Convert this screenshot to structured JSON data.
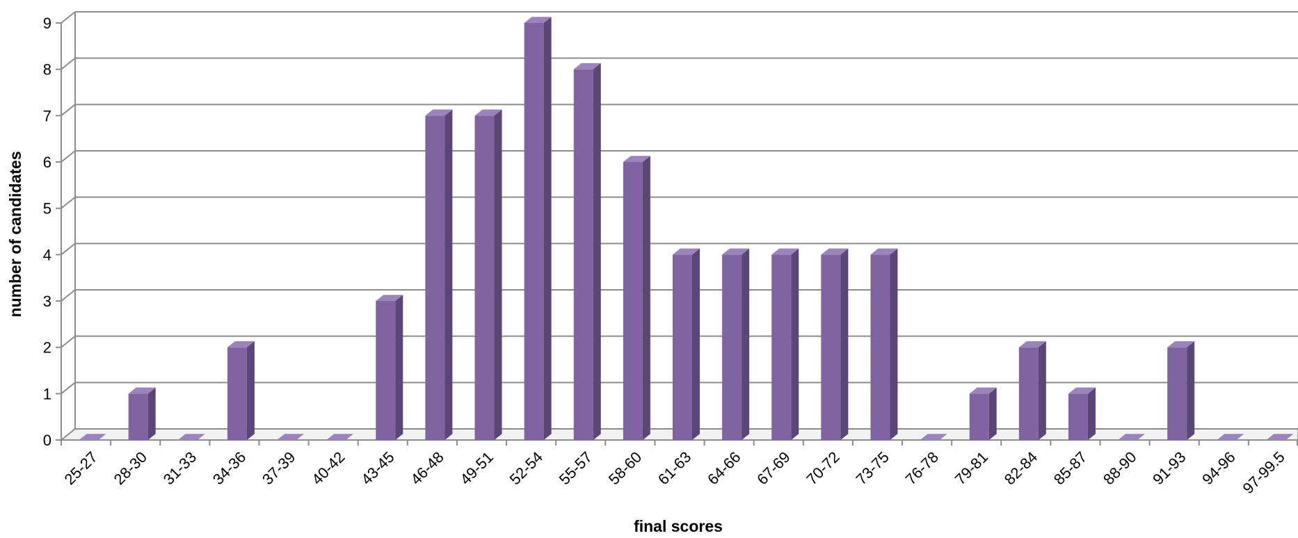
{
  "chart_data": {
    "type": "bar",
    "title": "",
    "xlabel": "final scores",
    "ylabel": "number of candidates",
    "ylim": [
      0,
      9
    ],
    "yticks": [
      0,
      1,
      2,
      3,
      4,
      5,
      6,
      7,
      8,
      9
    ],
    "grid": true,
    "legend": "none",
    "style": "3d-column",
    "categories": [
      "25-27",
      "28-30",
      "31-33",
      "34-36",
      "37-39",
      "40-42",
      "43-45",
      "46-48",
      "49-51",
      "52-54",
      "55-57",
      "58-60",
      "61-63",
      "64-66",
      "67-69",
      "70-72",
      "73-75",
      "76-78",
      "79-81",
      "82-84",
      "85-87",
      "88-90",
      "91-93",
      "94-96",
      "97-99.5"
    ],
    "values": [
      0,
      1,
      0,
      2,
      0,
      0,
      3,
      7,
      7,
      9,
      8,
      6,
      4,
      4,
      4,
      4,
      4,
      0,
      1,
      2,
      1,
      0,
      2,
      0,
      0
    ],
    "colors": {
      "bar_front": "#8064a2",
      "bar_side": "#5c4677",
      "bar_top": "#9b84bb",
      "grid": "#8c8c8c",
      "wall": "#ffffff"
    }
  }
}
